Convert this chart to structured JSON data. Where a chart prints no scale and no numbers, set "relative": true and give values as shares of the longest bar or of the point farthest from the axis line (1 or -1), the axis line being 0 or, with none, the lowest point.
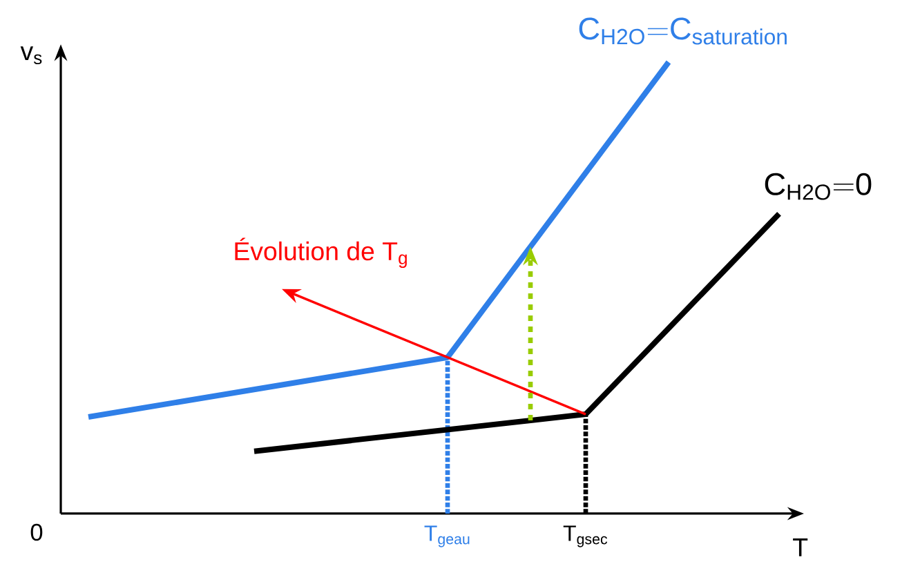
{
  "chart_data": {
    "type": "line",
    "relative": true,
    "xlabel": "T",
    "ylabel": "v$_{s}$",
    "categories": [
      null,
      null,
      null,
      null,
      null,
      null,
      null,
      null,
      null,
      null,
      null,
      null,
      null,
      null,
      "T$_{geau}$",
      null,
      null,
      null,
      null,
      "T$_{gsec}$",
      null,
      null,
      null,
      null,
      null,
      null,
      null
    ],
    "ref_lines": [
      {
        "axis": "x",
        "value": "T$_{geau}$",
        "color": "#2f7fe8",
        "line_style": "dotted"
      },
      {
        "axis": "x",
        "value": "T$_{gsec}$",
        "color": "#000000",
        "line_style": "dotted"
      }
    ],
    "series": [
      {
        "name": "\\mathrm{C_{H2O}{=}C_{saturation}}",
        "color": "#2f7fe8",
        "values": [
          null,
          0.214,
          null,
          null,
          null,
          null,
          null,
          null,
          null,
          null,
          null,
          null,
          null,
          null,
          0.346,
          null,
          null,
          null,
          null,
          null,
          null,
          null,
          1,
          null,
          null,
          null,
          null
        ]
      },
      {
        "name": "\\mathrm{C_{H2O}{=}0}",
        "color": "#000000",
        "values": [
          null,
          null,
          null,
          null,
          null,
          null,
          null,
          0.138,
          null,
          null,
          null,
          null,
          null,
          null,
          null,
          null,
          null,
          null,
          null,
          0.22,
          null,
          null,
          null,
          null,
          null,
          null,
          0.664
        ]
      }
    ],
    "annotations": [
      "Évolution de T$_{g}$",
      "0"
    ]
  }
}
